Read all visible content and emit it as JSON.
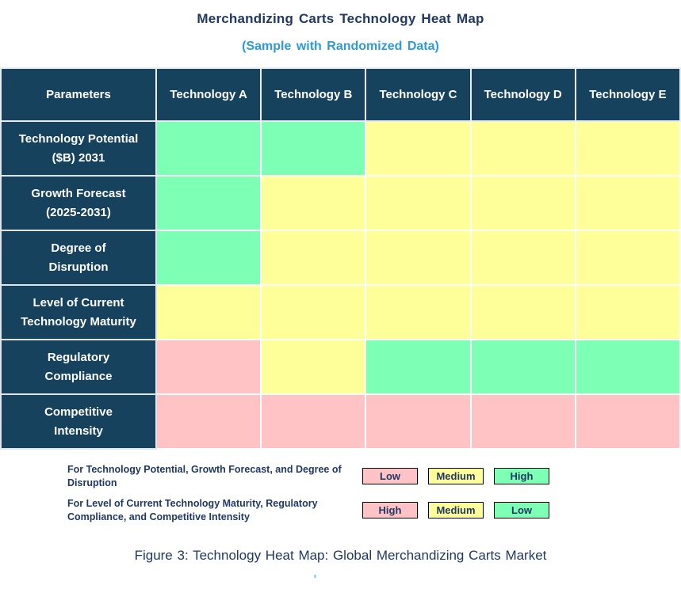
{
  "header": {
    "title": "Merchandizing Carts Technology Heat Map",
    "subtitle": "(Sample with Randomized Data)"
  },
  "colors": {
    "navy": "#16425E",
    "text_navy": "#1F3864",
    "subtitle_blue": "#2E9AD8",
    "green": "#7DFFB5",
    "yellow": "#FFFF99",
    "pink": "#FFC3C6"
  },
  "table": {
    "columns": [
      "Parameters",
      "Technology A",
      "Technology B",
      "Technology C",
      "Technology D",
      "Technology E"
    ],
    "rows": [
      {
        "label": "Technology Potential\n($B) 2031",
        "cells": [
          "green",
          "green",
          "yellow",
          "yellow",
          "yellow"
        ]
      },
      {
        "label": "Growth Forecast\n(2025-2031)",
        "cells": [
          "green",
          "yellow",
          "yellow",
          "yellow",
          "yellow"
        ]
      },
      {
        "label": "Degree of\nDisruption",
        "cells": [
          "green",
          "yellow",
          "yellow",
          "yellow",
          "yellow"
        ]
      },
      {
        "label": "Level of Current\nTechnology Maturity",
        "cells": [
          "yellow",
          "yellow",
          "yellow",
          "yellow",
          "yellow"
        ]
      },
      {
        "label": "Regulatory\nCompliance",
        "cells": [
          "pink",
          "yellow",
          "green",
          "green",
          "green"
        ]
      },
      {
        "label": "Competitive\nIntensity",
        "cells": [
          "pink",
          "pink",
          "pink",
          "pink",
          "pink"
        ]
      }
    ]
  },
  "legend": {
    "rows": [
      {
        "text": "For Technology Potential, Growth Forecast, and Degree of Disruption",
        "swatches": [
          {
            "label": "Low",
            "color": "pink"
          },
          {
            "label": "Medium",
            "color": "yellow"
          },
          {
            "label": "High",
            "color": "green"
          }
        ]
      },
      {
        "text": "For Level of Current Technology Maturity, Regulatory Compliance, and Competitive Intensity",
        "swatches": [
          {
            "label": "High",
            "color": "pink"
          },
          {
            "label": "Medium",
            "color": "yellow"
          },
          {
            "label": "Low",
            "color": "green"
          }
        ]
      }
    ]
  },
  "caption": "Figure 3: Technology Heat Map: Global Merchandizing Carts Market",
  "chart_data": {
    "type": "heatmap",
    "title": "Merchandizing Carts Technology Heat Map",
    "subtitle": "(Sample with Randomized Data)",
    "columns": [
      "Technology A",
      "Technology B",
      "Technology C",
      "Technology D",
      "Technology E"
    ],
    "rows": [
      "Technology Potential ($B) 2031",
      "Growth Forecast (2025-2031)",
      "Degree of Disruption",
      "Level of Current Technology Maturity",
      "Regulatory Compliance",
      "Competitive Intensity"
    ],
    "cell_colors": [
      [
        "green",
        "green",
        "yellow",
        "yellow",
        "yellow"
      ],
      [
        "green",
        "yellow",
        "yellow",
        "yellow",
        "yellow"
      ],
      [
        "green",
        "yellow",
        "yellow",
        "yellow",
        "yellow"
      ],
      [
        "yellow",
        "yellow",
        "yellow",
        "yellow",
        "yellow"
      ],
      [
        "pink",
        "yellow",
        "green",
        "green",
        "green"
      ],
      [
        "pink",
        "pink",
        "pink",
        "pink",
        "pink"
      ]
    ],
    "cell_ratings": [
      [
        "High",
        "High",
        "Medium",
        "Medium",
        "Medium"
      ],
      [
        "High",
        "Medium",
        "Medium",
        "Medium",
        "Medium"
      ],
      [
        "High",
        "Medium",
        "Medium",
        "Medium",
        "Medium"
      ],
      [
        "Medium",
        "Medium",
        "Medium",
        "Medium",
        "Medium"
      ],
      [
        "High",
        "Medium",
        "Low",
        "Low",
        "Low"
      ],
      [
        "High",
        "High",
        "High",
        "High",
        "High"
      ]
    ],
    "legend": [
      {
        "applies_to": "Technology Potential, Growth Forecast, Degree of Disruption",
        "pink": "Low",
        "yellow": "Medium",
        "green": "High"
      },
      {
        "applies_to": "Level of Current Technology Maturity, Regulatory Compliance, Competitive Intensity",
        "pink": "High",
        "yellow": "Medium",
        "green": "Low"
      }
    ],
    "caption": "Figure 3: Technology Heat Map: Global Merchandizing Carts Market"
  }
}
